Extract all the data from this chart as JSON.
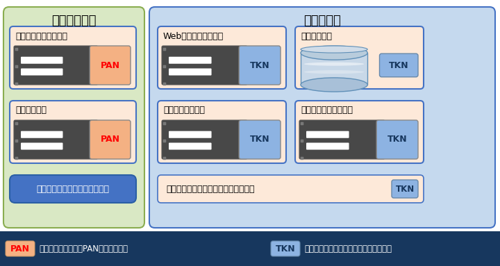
{
  "title_left": "監査対象範囲",
  "title_right": "監査範囲外",
  "bg_left": "#d9e8c4",
  "bg_right": "#c5d9ee",
  "box_bg": "#fde9d9",
  "box_border_blue": "#4472c4",
  "box_border_left": "#4472c4",
  "pan_color": "#f4b183",
  "pan_text_color": "#ff0000",
  "tkn_color": "#8db3e2",
  "tkn_text_color": "#17375e",
  "tok_btn_color": "#4472c4",
  "tok_btn_text": "#ffffff",
  "bottom_bar_color": "#17375e",
  "items_left": [
    "入力アプリケーション",
    "決算システム"
  ],
  "items_right_top": [
    "Webアプリケーション",
    "データベース"
  ],
  "items_right_mid": [
    "注文処理システム",
    "顧客サポートシステム"
  ],
  "item_other": "その他トークンへ置換可能なシステム",
  "tokenize_btn": "トークナイゼーションシステム",
  "legend_pan": "PAN",
  "legend_tkn": "TKN",
  "legend_pan_desc": "カード会員データ（PAN）を含む通信",
  "legend_tkn_desc": "トークン化されたデータのみを含む通信"
}
